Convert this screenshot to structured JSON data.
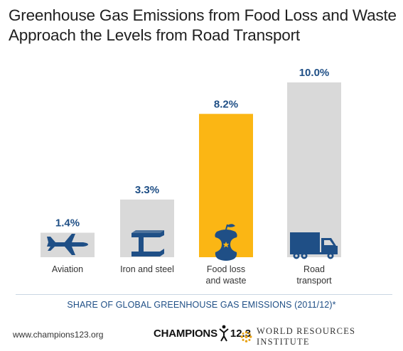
{
  "title_lines": [
    "Greenhouse Gas Emissions from Food Loss and Waste",
    "Approach the Levels from Road Transport"
  ],
  "chart_data": {
    "type": "bar",
    "title": "Greenhouse Gas Emissions from Food Loss and Waste Approach the Levels from Road Transport",
    "xlabel": "SHARE OF GLOBAL GREENHOUSE GAS EMISSIONS (2011/12)*",
    "ylabel": "",
    "ylim": [
      0,
      10.0
    ],
    "grid": false,
    "categories": [
      "Aviation",
      "Iron and steel",
      "Food loss and waste",
      "Road transport"
    ],
    "category_labels": [
      [
        "Aviation"
      ],
      [
        "Iron and steel"
      ],
      [
        "Food loss",
        "and waste"
      ],
      [
        "Road",
        "transport"
      ]
    ],
    "values": [
      1.4,
      3.3,
      8.2,
      10.0
    ],
    "value_labels": [
      "1.4%",
      "3.3%",
      "8.2%",
      "10.0%"
    ],
    "icons": [
      "airplane-icon",
      "steel-beam-icon",
      "apple-core-icon",
      "truck-icon"
    ],
    "colors": [
      "#d9d9d9",
      "#d9d9d9",
      "#fbb614",
      "#d9d9d9"
    ]
  },
  "colors": {
    "bar_default": "#d9d9d9",
    "bar_highlight": "#fbb614",
    "icon": "#1f4f86",
    "value_label": "#1f4f86",
    "subtitle": "#1f4f86"
  },
  "footer": {
    "url": "www.champions123.org",
    "champions_word": "CHAMPIONS",
    "champions_num": "12.3",
    "wri": "WORLD RESOURCES INSTITUTE"
  }
}
